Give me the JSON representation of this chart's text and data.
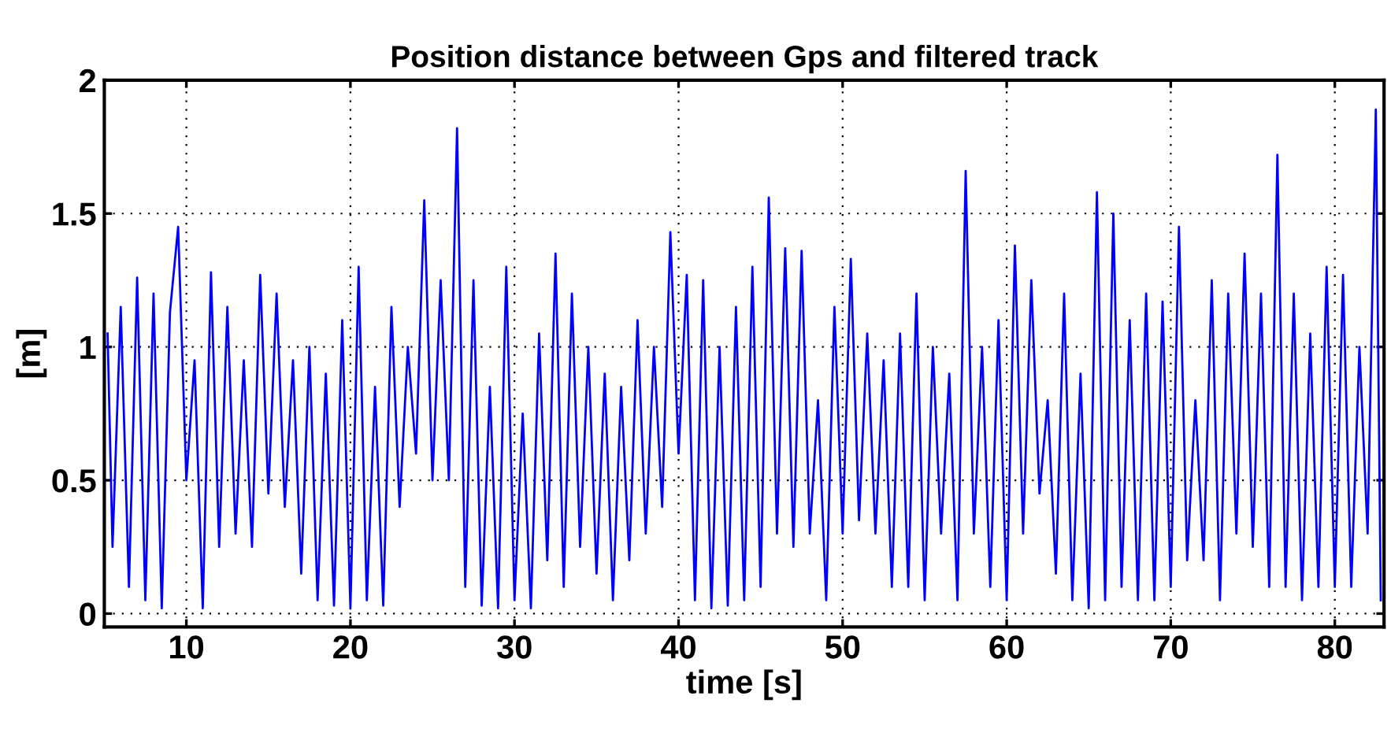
{
  "chart_data": {
    "type": "line",
    "title": "Position distance between Gps and filtered track",
    "xlabel": "time [s]",
    "ylabel": "[m]",
    "x": [
      5.2,
      5.5,
      6.0,
      6.5,
      7.0,
      7.5,
      8.0,
      8.5,
      9.0,
      9.5,
      10.0,
      10.5,
      11.0,
      11.5,
      12.0,
      12.5,
      13.0,
      13.5,
      14.0,
      14.5,
      15.0,
      15.5,
      16.0,
      16.5,
      17.0,
      17.5,
      18.0,
      18.5,
      19.0,
      19.5,
      20.0,
      20.5,
      21.0,
      21.5,
      22.0,
      22.5,
      23.0,
      23.5,
      24.0,
      24.5,
      25.0,
      25.5,
      26.0,
      26.5,
      27.0,
      27.5,
      28.0,
      28.5,
      29.0,
      29.5,
      30.0,
      30.5,
      31.0,
      31.5,
      32.0,
      32.5,
      33.0,
      33.5,
      34.0,
      34.5,
      35.0,
      35.5,
      36.0,
      36.5,
      37.0,
      37.5,
      38.0,
      38.5,
      39.0,
      39.5,
      40.0,
      40.5,
      41.0,
      41.5,
      42.0,
      42.5,
      43.0,
      43.5,
      44.0,
      44.5,
      45.0,
      45.5,
      46.0,
      46.5,
      47.0,
      47.5,
      48.0,
      48.5,
      49.0,
      49.5,
      50.0,
      50.5,
      51.0,
      51.5,
      52.0,
      52.5,
      53.0,
      53.5,
      54.0,
      54.5,
      55.0,
      55.5,
      56.0,
      56.5,
      57.0,
      57.5,
      58.0,
      58.5,
      59.0,
      59.5,
      60.0,
      60.5,
      61.0,
      61.5,
      62.0,
      62.5,
      63.0,
      63.5,
      64.0,
      64.5,
      65.0,
      65.5,
      66.0,
      66.5,
      67.0,
      67.5,
      68.0,
      68.5,
      69.0,
      69.5,
      70.0,
      70.5,
      71.0,
      71.5,
      72.0,
      72.5,
      73.0,
      73.5,
      74.0,
      74.5,
      75.0,
      75.5,
      76.0,
      76.5,
      77.0,
      77.5,
      78.0,
      78.5,
      79.0,
      79.5,
      80.0,
      80.5,
      81.0,
      81.5,
      82.0,
      82.5,
      82.8
    ],
    "series": [
      {
        "color": "#0000ff",
        "values": [
          1.05,
          0.25,
          1.15,
          0.1,
          1.26,
          0.05,
          1.2,
          0.02,
          1.13,
          1.45,
          0.5,
          0.95,
          0.02,
          1.28,
          0.25,
          1.15,
          0.3,
          0.95,
          0.25,
          1.27,
          0.45,
          1.2,
          0.4,
          0.95,
          0.15,
          1.0,
          0.05,
          0.9,
          0.03,
          1.1,
          0.02,
          1.3,
          0.05,
          0.85,
          0.03,
          1.15,
          0.4,
          1.0,
          0.6,
          1.55,
          0.5,
          1.25,
          0.5,
          1.82,
          0.1,
          1.25,
          0.03,
          0.85,
          0.02,
          1.3,
          0.05,
          0.75,
          0.02,
          1.05,
          0.2,
          1.35,
          0.1,
          1.2,
          0.25,
          1.0,
          0.15,
          0.9,
          0.05,
          0.85,
          0.2,
          1.1,
          0.3,
          1.0,
          0.4,
          1.43,
          0.6,
          1.27,
          0.05,
          1.25,
          0.02,
          1.0,
          0.03,
          1.15,
          0.05,
          1.3,
          0.1,
          1.56,
          0.3,
          1.37,
          0.25,
          1.36,
          0.3,
          0.8,
          0.05,
          1.15,
          0.3,
          1.33,
          0.35,
          1.05,
          0.3,
          0.95,
          0.1,
          1.05,
          0.1,
          1.2,
          0.05,
          1.0,
          0.3,
          0.9,
          0.05,
          1.66,
          0.3,
          1.0,
          0.1,
          1.1,
          0.05,
          1.38,
          0.3,
          1.25,
          0.45,
          0.8,
          0.15,
          1.2,
          0.05,
          0.9,
          0.02,
          1.58,
          0.05,
          1.5,
          0.1,
          1.1,
          0.05,
          1.2,
          0.05,
          1.17,
          0.1,
          1.45,
          0.2,
          0.8,
          0.2,
          1.25,
          0.05,
          1.2,
          0.3,
          1.35,
          0.25,
          1.2,
          0.1,
          1.72,
          0.1,
          1.2,
          0.05,
          1.05,
          0.1,
          1.3,
          0.1,
          1.27,
          0.1,
          1.0,
          0.3,
          1.89,
          0.05
        ]
      }
    ],
    "xlim": [
      5,
      83
    ],
    "ylim": [
      -0.05,
      2
    ],
    "xticks": [
      10,
      20,
      30,
      40,
      50,
      60,
      70,
      80
    ],
    "yticks": [
      0,
      0.5,
      1,
      1.5,
      2
    ],
    "grid": true,
    "line_style": "solid",
    "marker": "none"
  }
}
